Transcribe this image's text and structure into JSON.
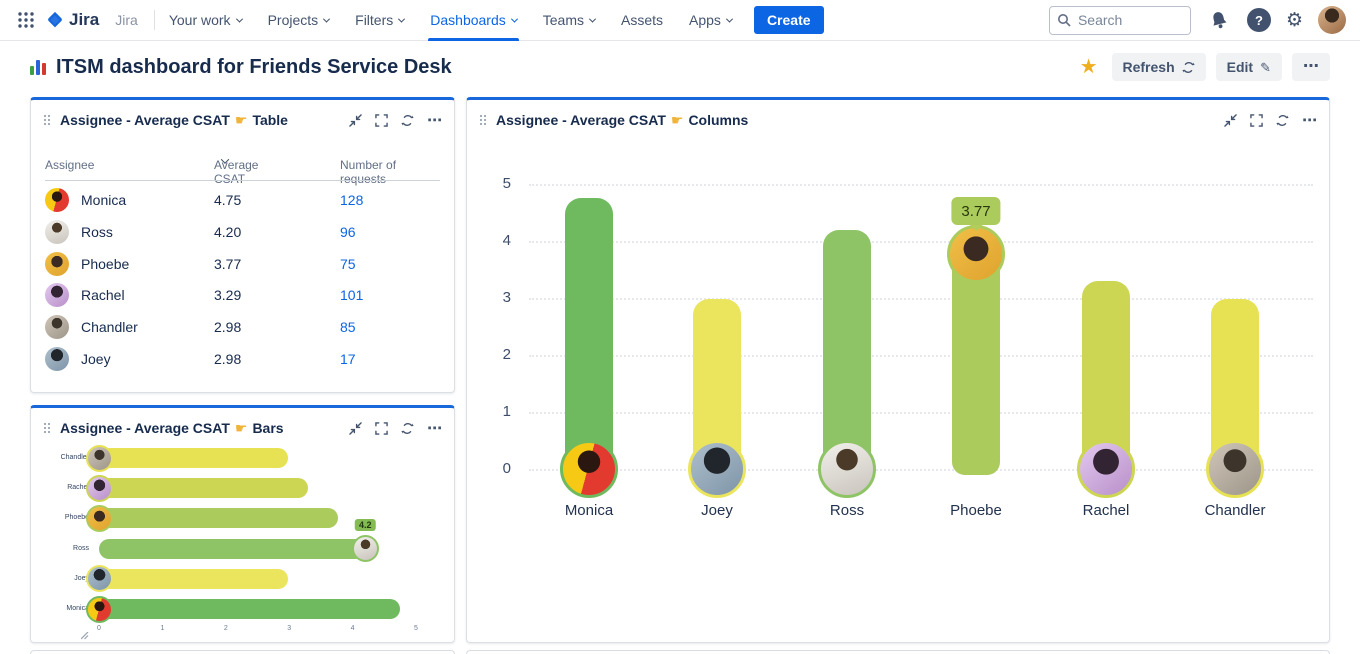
{
  "nav": {
    "logo_text": "Jira",
    "app_label": "Jira",
    "items": [
      {
        "label": "Your work",
        "chevron": true,
        "active": false
      },
      {
        "label": "Projects",
        "chevron": true,
        "active": false
      },
      {
        "label": "Filters",
        "chevron": true,
        "active": false
      },
      {
        "label": "Dashboards",
        "chevron": true,
        "active": true
      },
      {
        "label": "Teams",
        "chevron": true,
        "active": false
      },
      {
        "label": "Assets",
        "chevron": false,
        "active": false
      },
      {
        "label": "Apps",
        "chevron": true,
        "active": false
      }
    ],
    "create_label": "Create",
    "search_placeholder": "Search"
  },
  "page": {
    "title": "ITSM dashboard for Friends Service Desk",
    "refresh_label": "Refresh",
    "edit_label": "Edit"
  },
  "glyphs": {
    "star": "★",
    "gear": "⚙",
    "pencil": "✎",
    "more": "⋯",
    "help": "?",
    "pointer": "☛"
  },
  "panel_titles": {
    "prefix": "Assignee - Average CSAT",
    "table_suffix": "Table",
    "bars_suffix": "Bars",
    "columns_suffix": "Columns"
  },
  "table": {
    "columns": [
      "Assignee",
      "Average CSAT",
      "Number of requests"
    ],
    "rows": [
      {
        "name": "Monica",
        "csat": "4.75",
        "requests": "128"
      },
      {
        "name": "Ross",
        "csat": "4.20",
        "requests": "96"
      },
      {
        "name": "Phoebe",
        "csat": "3.77",
        "requests": "75"
      },
      {
        "name": "Rachel",
        "csat": "3.29",
        "requests": "101"
      },
      {
        "name": "Chandler",
        "csat": "2.98",
        "requests": "85"
      },
      {
        "name": "Joey",
        "csat": "2.98",
        "requests": "17"
      }
    ]
  },
  "colors": {
    "Monica": "#6fba5f",
    "Ross": "#8ec466",
    "Phoebe": "#abcb5d",
    "Rachel": "#ccd652",
    "Chandler": "#e7e254",
    "Joey": "#ebe55e",
    "accent_blue": "#1868db",
    "link_blue": "#0c66e4"
  },
  "avatars": {
    "monica": "radial-gradient(circle at 50% 36%, #2a1710 26%, rgba(0,0,0,0) 27%), linear-gradient(105deg, #f6c915 48%, #e23a2e 48%)",
    "ross": "radial-gradient(circle at 50% 32%, #4c3a28 24%, rgba(0,0,0,0) 25%), linear-gradient(160deg, #f2f0ec, #c9c4bc)",
    "phoebe": "radial-gradient(circle at 50% 40%, #3a2a22 30%, rgba(0,0,0,0) 31%), linear-gradient(140deg, #f0bf47, #dfa32e)",
    "rachel": "radial-gradient(circle at 50% 36%, #332433 30%, rgba(0,0,0,0) 31%), linear-gradient(140deg, #e3c9ef, #b88fc9)",
    "chandler": "radial-gradient(circle at 50% 34%, #3d342b 26%, rgba(0,0,0,0) 27%), linear-gradient(140deg, #cfc6b8, #9e958a)",
    "joey": "radial-gradient(circle at 50% 34%, #20262c 30%, rgba(0,0,0,0) 31%), linear-gradient(140deg, #aebfcc, #7e95a8)",
    "user": "radial-gradient(circle at 50% 34%, #3a2a1e 30%, rgba(0,0,0,0) 31%), linear-gradient(140deg, #d9b38f, #9a6b44)"
  },
  "chart_data": [
    {
      "type": "bar",
      "orientation": "horizontal",
      "title": "Assignee - Average CSAT - Bars",
      "categories": [
        "Chandler",
        "Rachel",
        "Phoebe",
        "Ross",
        "Joey",
        "Monica"
      ],
      "values": [
        2.98,
        3.29,
        3.77,
        4.2,
        2.98,
        4.75
      ],
      "xlabel": "",
      "ylabel": "",
      "xlim": [
        0,
        5
      ],
      "x_ticks": [
        0,
        1,
        2,
        3,
        4,
        5
      ],
      "value_labels": {
        "Ross": "4.2"
      },
      "avatar_positions": {
        "Ross": "end"
      },
      "grid": false,
      "legend": false
    },
    {
      "type": "bar",
      "orientation": "vertical",
      "title": "Assignee - Average CSAT - Columns",
      "categories": [
        "Monica",
        "Joey",
        "Ross",
        "Phoebe",
        "Rachel",
        "Chandler"
      ],
      "values": [
        4.75,
        2.98,
        4.2,
        3.77,
        3.29,
        2.98
      ],
      "xlabel": "",
      "ylabel": "",
      "ylim": [
        0,
        5
      ],
      "y_ticks": [
        5,
        4,
        3,
        2,
        1,
        0
      ],
      "value_labels": {
        "Phoebe": "3.77"
      },
      "avatar_positions": {
        "Phoebe": "top"
      },
      "grid": true,
      "legend": false
    }
  ]
}
